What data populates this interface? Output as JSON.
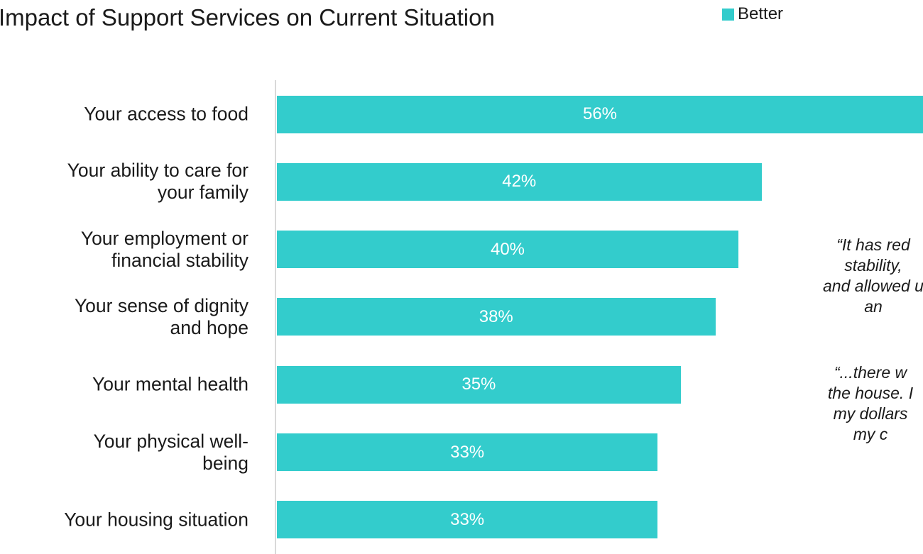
{
  "chart_data": {
    "type": "bar",
    "orientation": "horizontal",
    "title": "Impact of Support Services on Current Situation",
    "categories": [
      [
        "Your access to food"
      ],
      [
        "Your ability to care for",
        "your family"
      ],
      [
        "Your employment or",
        "financial stability"
      ],
      [
        "Your sense of dignity",
        "and hope"
      ],
      [
        "Your mental health"
      ],
      [
        "Your physical well-",
        "being"
      ],
      [
        "Your housing situation"
      ]
    ],
    "series": [
      {
        "name": "Better",
        "color": "#33cccc",
        "values": [
          56,
          42,
          40,
          38,
          35,
          33,
          33
        ]
      }
    ],
    "value_labels": [
      "56%",
      "42%",
      "40%",
      "38%",
      "35%",
      "33%",
      "33%"
    ],
    "legend": {
      "position": "top-right",
      "entries": [
        "Better"
      ]
    },
    "xlim": [
      0,
      56
    ],
    "grid": false
  },
  "quotes": [
    [
      "“It has red",
      "stability, ",
      "and allowed u",
      "an"
    ],
    [
      "“...there w",
      "the house. I",
      "my dollars ",
      "my c"
    ]
  ]
}
